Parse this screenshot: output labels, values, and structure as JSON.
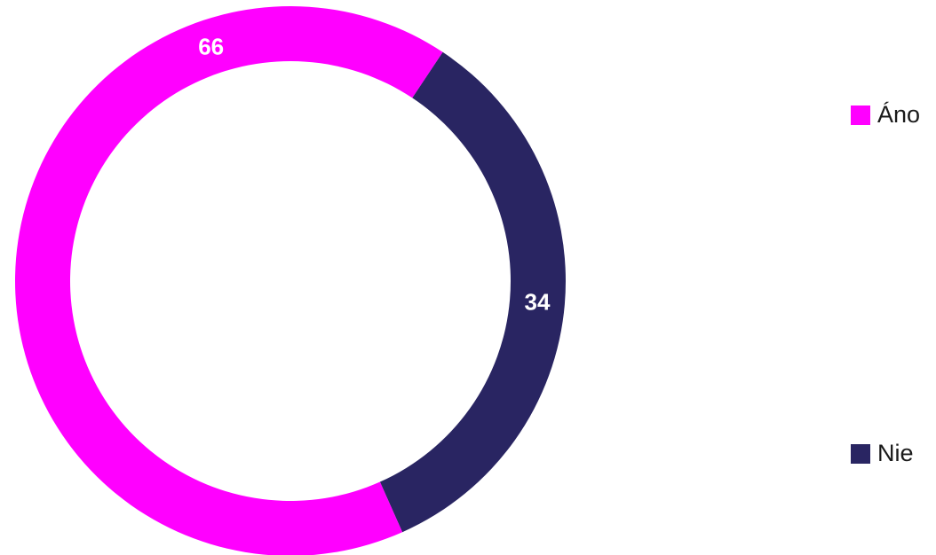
{
  "chart_data": {
    "type": "pie",
    "title": "",
    "categories": [
      "Áno",
      "Nie"
    ],
    "values": [
      66,
      34
    ],
    "colors": [
      "#ff00ff",
      "#292562"
    ],
    "data_labels": [
      "66",
      "34"
    ],
    "donut": true,
    "legend_placement": "right"
  },
  "legend": {
    "items": [
      {
        "label": "Áno",
        "color": "#ff00ff"
      },
      {
        "label": "Nie",
        "color": "#292562"
      }
    ]
  }
}
